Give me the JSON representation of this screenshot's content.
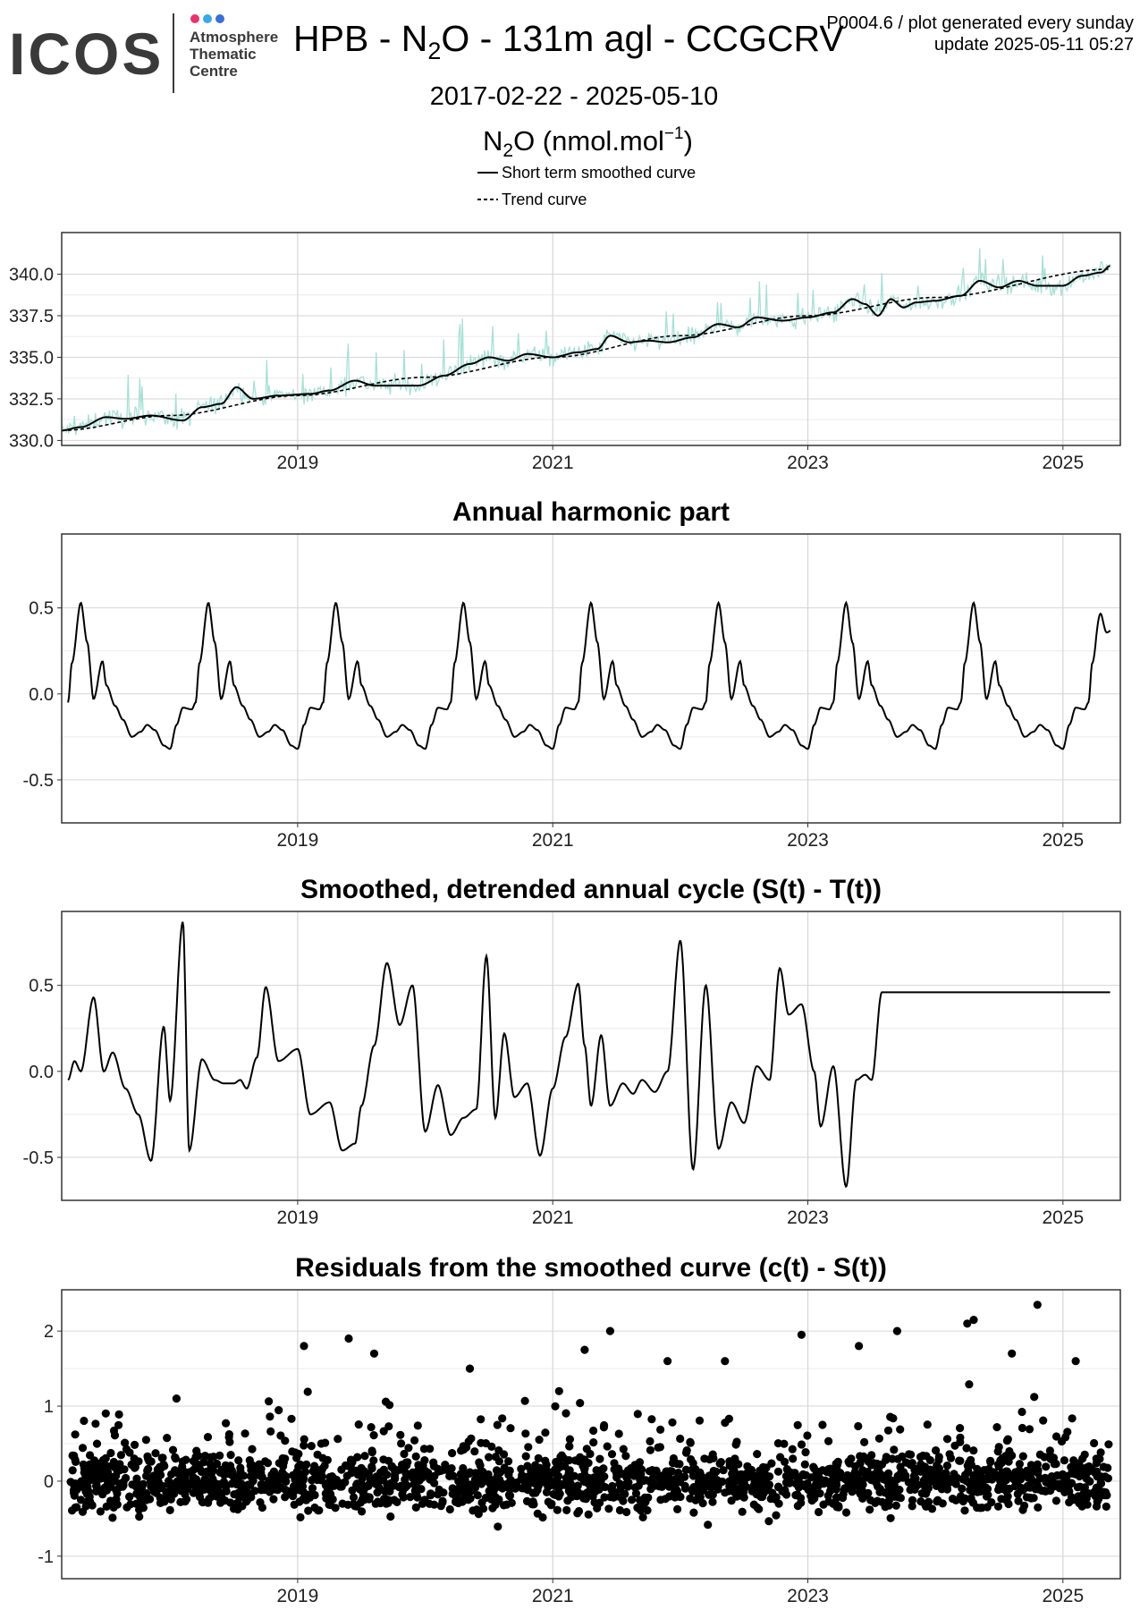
{
  "header": {
    "logo_text": "ICOS",
    "logo_dot_colors": [
      "#e8336e",
      "#3aa8e6",
      "#3a6fd8"
    ],
    "org_lines": [
      "Atmosphere",
      "Thematic",
      "Centre"
    ],
    "title_prefix": "HPB - N",
    "title_sub": "2",
    "title_suffix": "O - 131m agl - CCGCRV",
    "meta_line1": "P0004.6 / plot generated every sunday",
    "meta_line2": "update  2025-05-11 05:27",
    "date_range": "2017-02-22 - 2025-05-10",
    "species_prefix": "N",
    "species_sub": "2",
    "species_mid": "O (nmol.mol",
    "species_sup": "−1",
    "species_suffix": ")"
  },
  "legend": [
    {
      "label": "Short term smoothed curve",
      "style": "solid"
    },
    {
      "label": "Trend curve",
      "style": "dashed"
    }
  ],
  "colors": {
    "raw_series": "#a8e0d6",
    "curve": "#000000",
    "grid_major": "#d6d6d6",
    "grid_minor": "#ececec",
    "panel_border": "#333333"
  },
  "chart_data": [
    {
      "type": "line",
      "title": "",
      "xlabel": "",
      "ylabel": "",
      "xlim": [
        2017.15,
        2025.45
      ],
      "ylim": [
        329.7,
        342.5
      ],
      "xticks": [
        2019,
        2021,
        2023,
        2025
      ],
      "yticks": [
        330.0,
        332.5,
        335.0,
        337.5,
        340.0
      ],
      "ytick_labels": [
        "330.0",
        "332.5",
        "335.0",
        "337.5",
        "340.0"
      ],
      "grid": true,
      "series": [
        {
          "name": "Short term smoothed curve",
          "style": "solid",
          "x": [
            2017.15,
            2017.3,
            2017.5,
            2017.65,
            2017.85,
            2018.1,
            2018.25,
            2018.4,
            2018.52,
            2018.65,
            2018.85,
            2019.1,
            2019.25,
            2019.45,
            2019.6,
            2019.75,
            2019.95,
            2020.15,
            2020.35,
            2020.5,
            2020.65,
            2020.8,
            2021.0,
            2021.2,
            2021.35,
            2021.45,
            2021.6,
            2021.75,
            2021.9,
            2022.1,
            2022.3,
            2022.45,
            2022.6,
            2022.8,
            2023.0,
            2023.2,
            2023.35,
            2023.45,
            2023.55,
            2023.65,
            2023.75,
            2023.85,
            2024.0,
            2024.2,
            2024.35,
            2024.5,
            2024.65,
            2024.8,
            2025.0,
            2025.15,
            2025.3,
            2025.37
          ],
          "y": [
            330.6,
            330.8,
            331.4,
            331.3,
            331.5,
            331.2,
            332.0,
            332.2,
            333.2,
            332.5,
            332.7,
            332.8,
            333.0,
            333.6,
            333.3,
            333.3,
            333.3,
            333.9,
            334.6,
            335.0,
            334.8,
            335.2,
            335.0,
            335.3,
            335.5,
            336.3,
            335.9,
            336.0,
            335.9,
            336.2,
            337.0,
            336.8,
            337.4,
            337.2,
            337.4,
            337.7,
            338.5,
            338.2,
            337.5,
            338.5,
            338.0,
            338.3,
            338.4,
            338.7,
            339.6,
            339.2,
            339.6,
            339.3,
            339.3,
            339.9,
            340.1,
            340.5
          ]
        },
        {
          "name": "Trend curve",
          "style": "dashed",
          "x": [
            2017.15,
            2018.0,
            2019.0,
            2020.0,
            2021.0,
            2022.0,
            2023.0,
            2024.0,
            2025.37
          ],
          "y": [
            330.6,
            331.5,
            332.7,
            333.8,
            335.0,
            336.3,
            337.5,
            338.6,
            340.3
          ]
        },
        {
          "name": "",
          "style": "raw",
          "x_start": 2017.15,
          "x_end": 2025.37,
          "scatter": 0.55,
          "spike_max": 2.5
        }
      ]
    },
    {
      "type": "line",
      "title": "Annual harmonic part",
      "xlabel": "",
      "ylabel": "",
      "xlim": [
        2017.15,
        2025.45
      ],
      "ylim": [
        -0.75,
        0.93
      ],
      "xticks": [
        2019,
        2021,
        2023,
        2025
      ],
      "yticks": [
        0.5,
        0.0,
        -0.5
      ],
      "ytick_labels": [
        "0.5",
        "0.0",
        "-0.5"
      ],
      "grid": true,
      "period_profile": {
        "phase": [
          0.0,
          0.05,
          0.1,
          0.17,
          0.2,
          0.23,
          0.3,
          0.35,
          0.4,
          0.47,
          0.5,
          0.57,
          0.63,
          0.7,
          0.77,
          0.82,
          0.88,
          0.95,
          1.0
        ],
        "value": [
          -0.32,
          -0.18,
          -0.08,
          -0.09,
          -0.05,
          0.18,
          0.53,
          0.3,
          -0.03,
          0.19,
          0.05,
          -0.07,
          -0.15,
          -0.25,
          -0.22,
          -0.18,
          -0.21,
          -0.3,
          -0.32
        ],
        "start": 2019.0
      },
      "series": [
        {
          "name": "",
          "x_start": 2017.2,
          "x_end": 2025.37,
          "end_value": 0.37
        }
      ]
    },
    {
      "type": "line",
      "title": "Smoothed, detrended annual cycle (S(t) - T(t))",
      "xlabel": "",
      "ylabel": "",
      "xlim": [
        2017.15,
        2025.45
      ],
      "ylim": [
        -0.75,
        0.93
      ],
      "xticks": [
        2019,
        2021,
        2023,
        2025
      ],
      "yticks": [
        0.5,
        0.0,
        -0.5
      ],
      "ytick_labels": [
        "0.5",
        "0.0",
        "-0.5"
      ],
      "grid": true,
      "series": [
        {
          "name": "",
          "x": [
            2017.2,
            2017.25,
            2017.3,
            2017.4,
            2017.48,
            2017.55,
            2017.65,
            2017.75,
            2017.85,
            2017.95,
            2018.0,
            2018.1,
            2018.15,
            2018.25,
            2018.35,
            2018.42,
            2018.5,
            2018.55,
            2018.6,
            2018.68,
            2018.75,
            2018.85,
            2019.0,
            2019.1,
            2019.25,
            2019.35,
            2019.45,
            2019.5,
            2019.6,
            2019.7,
            2019.8,
            2019.9,
            2020.0,
            2020.1,
            2020.2,
            2020.3,
            2020.4,
            2020.48,
            2020.55,
            2020.62,
            2020.7,
            2020.8,
            2020.9,
            2021.0,
            2021.1,
            2021.2,
            2021.25,
            2021.3,
            2021.38,
            2021.45,
            2021.55,
            2021.63,
            2021.7,
            2021.8,
            2021.9,
            2022.0,
            2022.1,
            2022.2,
            2022.3,
            2022.4,
            2022.5,
            2022.6,
            2022.7,
            2022.78,
            2022.85,
            2022.95,
            2023.05,
            2023.1,
            2023.2,
            2023.3,
            2023.38,
            2023.45,
            2023.5,
            2023.58,
            2023.65,
            2023.7,
            2023.8,
            2023.9,
            2024.0,
            2024.05,
            2024.15,
            2024.25,
            2024.35,
            2024.45,
            2024.55,
            2024.65,
            2024.75,
            2024.8,
            2024.88,
            2024.95,
            2025.0,
            2025.05,
            2025.1,
            2025.15,
            2025.22,
            2025.3,
            2025.37
          ],
          "y": [
            -0.05,
            0.06,
            0.0,
            0.43,
            0.0,
            0.11,
            -0.1,
            -0.25,
            -0.52,
            0.26,
            -0.17,
            0.87,
            -0.46,
            0.07,
            -0.05,
            -0.07,
            -0.07,
            -0.05,
            -0.1,
            0.08,
            0.49,
            0.06,
            0.13,
            -0.25,
            -0.18,
            -0.46,
            -0.42,
            -0.2,
            0.15,
            0.63,
            0.27,
            0.5,
            -0.35,
            -0.08,
            -0.37,
            -0.27,
            -0.22,
            0.67,
            -0.27,
            0.22,
            -0.15,
            -0.07,
            -0.49,
            -0.1,
            0.2,
            0.51,
            0.15,
            -0.2,
            0.21,
            -0.2,
            -0.07,
            -0.13,
            -0.05,
            -0.12,
            0.0,
            0.76,
            -0.57,
            0.5,
            -0.45,
            -0.18,
            -0.3,
            0.03,
            -0.05,
            0.6,
            0.33,
            0.39,
            0.0,
            -0.32,
            0.03,
            -0.67,
            -0.05,
            -0.02,
            -0.05,
            0.46,
            0.46,
            0.46,
            0.46,
            0.46,
            0.46,
            0.46,
            0.46,
            0.46,
            0.46,
            0.46,
            0.46,
            0.46,
            0.46,
            0.46,
            0.46,
            0.46,
            0.46,
            0.46,
            0.46,
            0.46,
            0.46,
            0.46,
            0.46
          ]
        }
      ]
    },
    {
      "type": "scatter",
      "title": "Residuals from the smoothed curve (c(t) - S(t))",
      "xlabel": "",
      "ylabel": "",
      "xlim": [
        2017.15,
        2025.45
      ],
      "ylim": [
        -1.3,
        2.55
      ],
      "xticks": [
        2019,
        2021,
        2023,
        2025
      ],
      "yticks": [
        2,
        1,
        0,
        -1
      ],
      "ytick_labels": [
        "2",
        "1",
        "0",
        "-1"
      ],
      "grid": true,
      "series": [
        {
          "name": "",
          "x_start": 2017.22,
          "x_end": 2025.37,
          "count": 1900,
          "spread": 0.38,
          "outliers_x": [
            2018.05,
            2019.05,
            2019.4,
            2019.6,
            2020.35,
            2021.05,
            2021.25,
            2021.45,
            2021.9,
            2022.35,
            2022.95,
            2023.4,
            2023.7,
            2024.25,
            2024.3,
            2024.6,
            2024.8,
            2025.1
          ],
          "outliers_y": [
            1.1,
            1.8,
            1.9,
            1.7,
            1.5,
            1.2,
            1.75,
            2.0,
            1.6,
            1.6,
            1.95,
            1.8,
            2.0,
            2.1,
            2.15,
            1.7,
            2.35,
            1.6
          ]
        }
      ]
    }
  ]
}
